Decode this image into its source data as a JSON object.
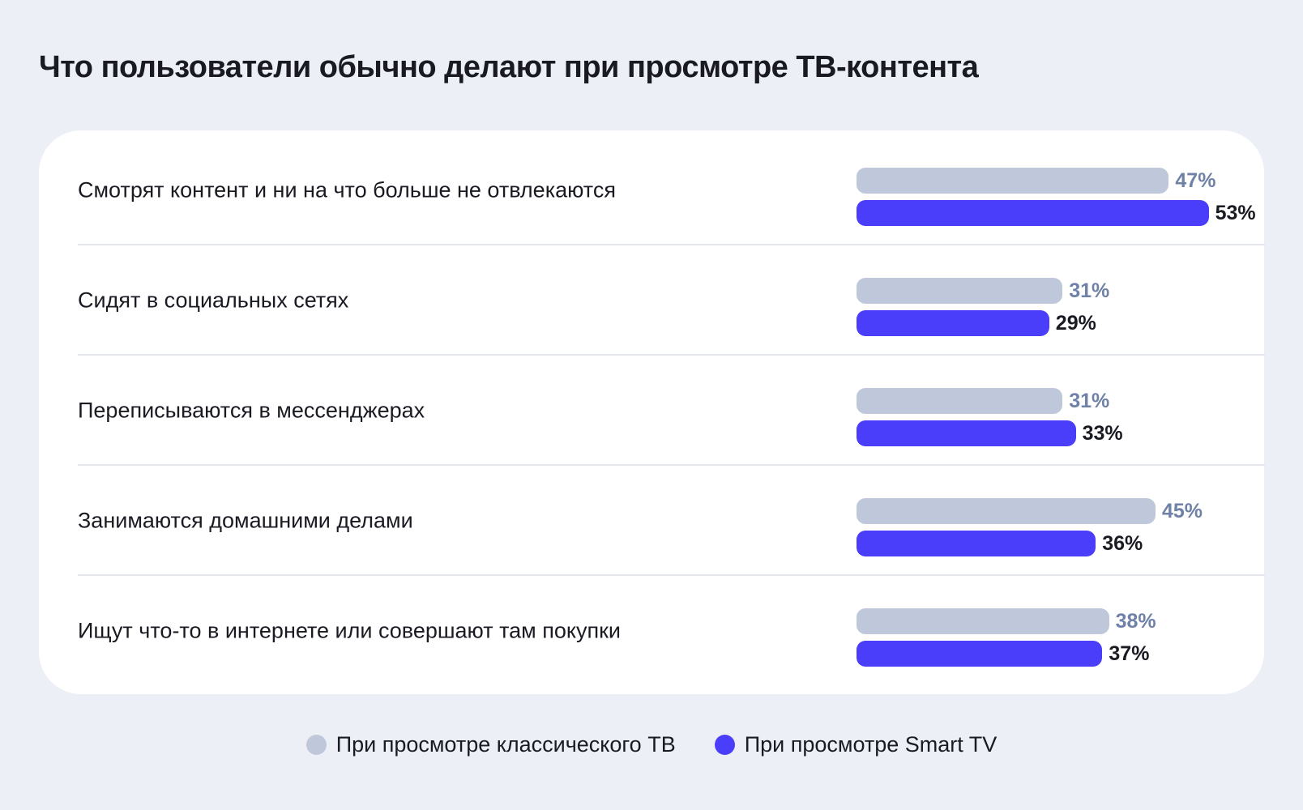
{
  "title": "Что пользователи обычно делают при просмотре ТВ-контента",
  "colors": {
    "background": "#ECEFF6",
    "card": "#FFFFFF",
    "classic_bar": "#BFC8DB",
    "classic_value": "#6F81A6",
    "smart_bar": "#4B3EFB",
    "smart_value": "#1A1B22"
  },
  "chart_data": {
    "type": "bar",
    "orientation": "horizontal",
    "title": "Что пользователи обычно делают при просмотре ТВ-контента",
    "unit": "%",
    "xlim": [
      0,
      60
    ],
    "categories": [
      "Смотрят контент и ни на что больше не отвлекаются",
      "Сидят в социальных сетях",
      "Переписываются в мессенджерах",
      "Занимаются домашними делами",
      "Ищут что-то в интернете или совершают там покупки"
    ],
    "series": [
      {
        "name": "При просмотре классического ТВ",
        "color": "#BFC8DB",
        "values": [
          47,
          31,
          31,
          45,
          38
        ],
        "labels": [
          "47%",
          "31%",
          "31%",
          "45%",
          "38%"
        ]
      },
      {
        "name": "При просмотре Smart TV",
        "color": "#4B3EFB",
        "values": [
          53,
          29,
          33,
          36,
          37
        ],
        "labels": [
          "53%",
          "29%",
          "33%",
          "36%",
          "37%"
        ]
      }
    ],
    "legend": "bottom-center"
  }
}
